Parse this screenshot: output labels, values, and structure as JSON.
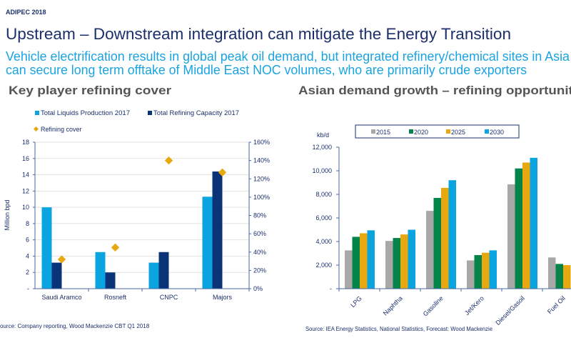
{
  "header": {
    "event": "ADIPEC 2018",
    "title": "Upstream – Downstream integration can mitigate the Energy Transition",
    "subtitle_line1": "Vehicle electrification results in global peak oil demand, but integrated refinery/chemical sites in Asia",
    "subtitle_line2": "can secure long term offtake of Middle East NOC volumes,  who are primarily crude exporters"
  },
  "colors": {
    "title": "#1b2f6b",
    "subtitle": "#1aa3e0",
    "heading": "#555555",
    "light_blue": "#0aa5e0",
    "navy": "#0b3478",
    "orange": "#e8a80f",
    "grey": "#a8a8a8",
    "green": "#05844a"
  },
  "chart_data": [
    {
      "type": "bar",
      "title": "Key player refining cover",
      "categories": [
        "Saudi Aramco",
        "Rosneft",
        "CNPC",
        "Majors"
      ],
      "series": [
        {
          "name": "Total Liquids Production 2017",
          "values": [
            10.0,
            4.5,
            3.2,
            11.3
          ],
          "color": "#0aa5e0"
        },
        {
          "name": "Total Refining Capacity 2017",
          "values": [
            3.2,
            2.0,
            4.5,
            14.4
          ],
          "color": "#0b3478"
        },
        {
          "name": "Refining cover",
          "type": "scatter",
          "axis": "right",
          "values": [
            32,
            45,
            140,
            127
          ],
          "color": "#e8a80f"
        }
      ],
      "ylabel": "Million bpd",
      "ylim": [
        0,
        18
      ],
      "yticks": [
        "-",
        "2",
        "4",
        "6",
        "8",
        "10",
        "12",
        "14",
        "16",
        "18"
      ],
      "y2lim": [
        0,
        160
      ],
      "y2ticks": [
        "0%",
        "20%",
        "40%",
        "60%",
        "80%",
        "100%",
        "120%",
        "140%",
        "160%"
      ],
      "grid": true,
      "legend": "top",
      "source": "ource:  Company reporting, Wood Mackenzie  CBT Q1 2018"
    },
    {
      "type": "bar",
      "title": "Asian demand growth – refining opportuniti",
      "categories": [
        "LPG",
        "Naphtha",
        "Gasoline",
        "Jet/Kero",
        "Diesel/Gasoil",
        "Fuel Oil"
      ],
      "series": [
        {
          "name": "2015",
          "values": [
            3250,
            4050,
            6600,
            2400,
            8850,
            2650
          ],
          "color": "#a8a8a8"
        },
        {
          "name": "2020",
          "values": [
            4400,
            4300,
            7700,
            2850,
            10200,
            2100
          ],
          "color": "#05844a"
        },
        {
          "name": "2025",
          "values": [
            4700,
            4600,
            8550,
            3050,
            10700,
            2000
          ],
          "color": "#e8a80f"
        },
        {
          "name": "2030",
          "values": [
            4950,
            5000,
            9200,
            3250,
            11100,
            null
          ],
          "color": "#0aa5e0"
        }
      ],
      "ylabel": "kb/d",
      "ylim": [
        0,
        12000
      ],
      "yticks": [
        "-",
        "2,000",
        "4,000",
        "6,000",
        "8,000",
        "10,000",
        "12,000"
      ],
      "grid": false,
      "legend": "top",
      "source": "Source: IEA Energy Statistics, National Statistics, Forecast: Wood Mackenzie"
    }
  ]
}
